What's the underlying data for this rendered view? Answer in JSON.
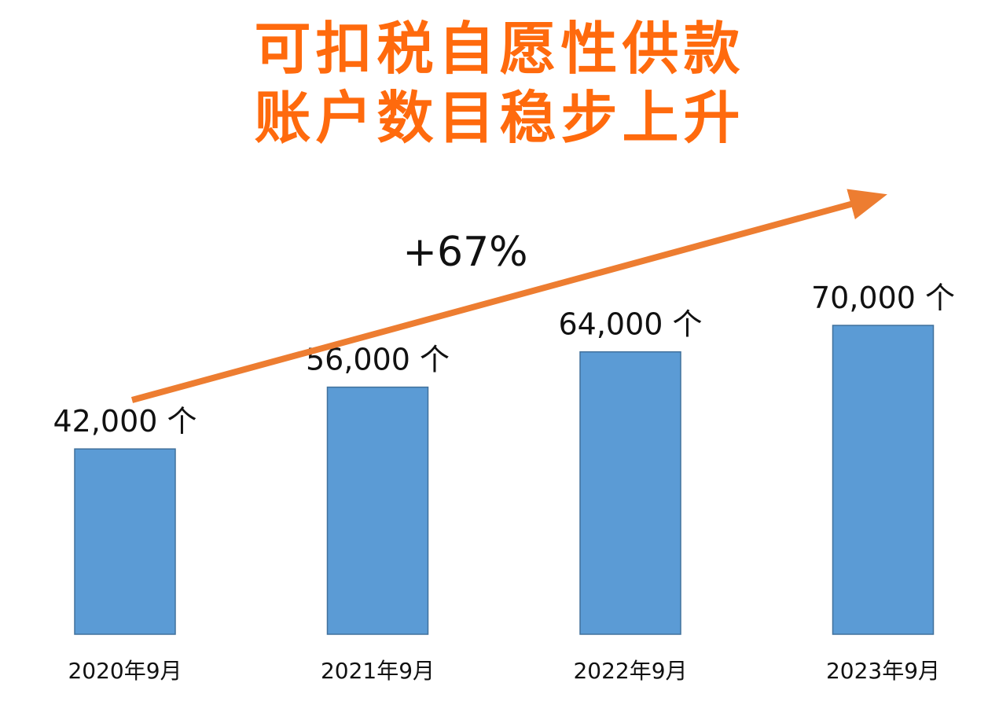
{
  "title_lines": [
    "可扣税自愿性供款",
    "账户数目稳步上升"
  ],
  "growth_label": "+67%",
  "colors": {
    "title": "#ff6a0d",
    "bar_fill": "#5b9bd5",
    "bar_stroke": "#41719c",
    "arrow": "#ed7d31",
    "text": "#111111"
  },
  "chart_data": {
    "type": "bar",
    "title": "可扣税自愿性供款账户数目稳步上升",
    "categories": [
      "2020年9月",
      "2021年9月",
      "2022年9月",
      "2023年9月"
    ],
    "values": [
      42000,
      56000,
      64000,
      70000
    ],
    "data_labels": [
      "42,000 个",
      "56,000 个",
      "64,000 个",
      "70,000 个"
    ],
    "unit": "个",
    "annotation": "+67%",
    "ylim": [
      0,
      70000
    ],
    "grid": false,
    "legend": "none"
  }
}
